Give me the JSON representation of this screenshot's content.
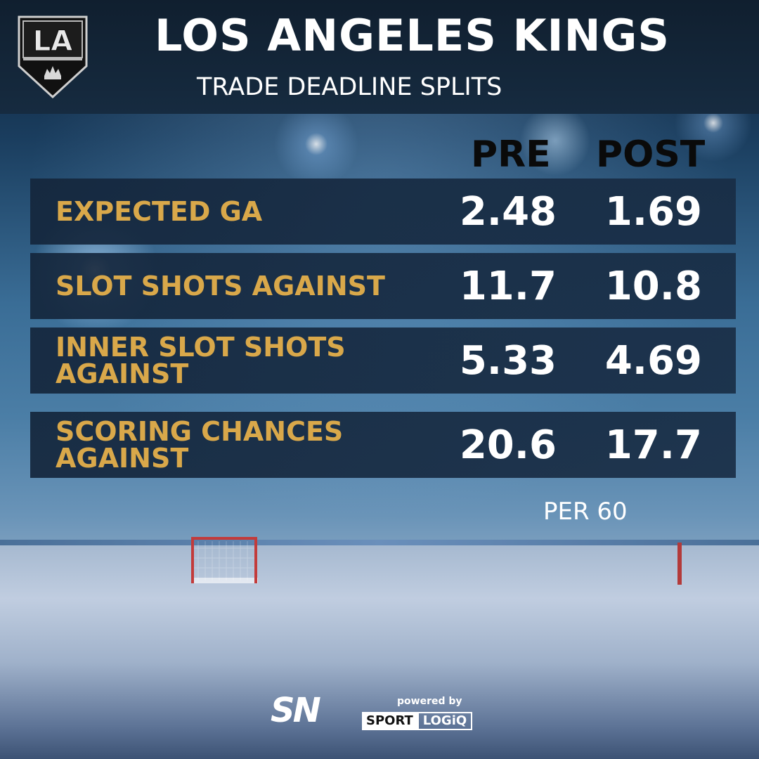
{
  "header": {
    "title": "LOS ANGELES KINGS",
    "subtitle": "TRADE DEADLINE SPLITS",
    "logo_text": "LA"
  },
  "table": {
    "columns": [
      "PRE",
      "POST"
    ],
    "rows": [
      {
        "label": "EXPECTED GA",
        "pre": "2.48",
        "post": "1.69"
      },
      {
        "label": "SLOT SHOTS AGAINST",
        "pre": "11.7",
        "post": "10.8"
      },
      {
        "label": "INNER SLOT SHOTS\nAGAINST",
        "pre": "5.33",
        "post": "4.69"
      },
      {
        "label": "SCORING CHANCES\nAGAINST",
        "pre": "20.6",
        "post": "17.7"
      }
    ],
    "footnote": "PER 60"
  },
  "footer": {
    "network_logo": "SN",
    "powered_by": "powered by",
    "partner_sport": "SPORT",
    "partner_logiq": "LOGiQ"
  },
  "colors": {
    "label_gold": "#d9a84a",
    "row_bg": "#14263c",
    "header_bg": "#101f2f"
  }
}
